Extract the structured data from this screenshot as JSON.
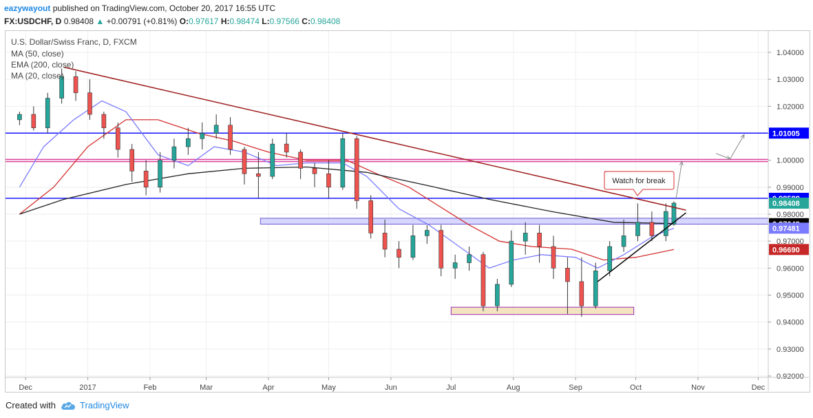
{
  "header": {
    "line1": {
      "author": "eazywayout",
      "published": "published on TradingView.com, October 20, 2017 16:55 UTC"
    },
    "line2": {
      "symbol": "FX:USDCHF, D",
      "price": "0.98408",
      "arrow": "▲",
      "change": "+0.00791 (+0.81%)",
      "o_label": "O:",
      "o_value": "0.97617",
      "h_label": "H:",
      "h_value": "0.98474",
      "l_label": "L:",
      "l_value": "0.97566",
      "c_label": "C:",
      "c_value": "0.98408"
    }
  },
  "legend": {
    "instrument": "U.S. Dollar/Swiss Franc, D, FXCM",
    "studies": [
      "MA (50, close)",
      "EMA (200, close)",
      "MA (20, close)"
    ]
  },
  "annotation": {
    "text": "Watch for break"
  },
  "footer": {
    "created_with": "Created with",
    "brand": "TradingView"
  },
  "colors": {
    "up": "#26a69a",
    "down": "#ef5350",
    "ma50": "#d32f2f",
    "ema200": "#222222",
    "ma20": "#7b7bff",
    "blue_line": "#0000ff",
    "pink_line": "#e040a0",
    "trend_line": "#9e1b1b",
    "support_zone": "#e6cfa0",
    "resistance_zone": "#c8c8ff"
  },
  "chart_data": {
    "type": "candlestick",
    "ylim": [
      0.915,
      1.045
    ],
    "yticks": [
      "1.04000",
      "1.03000",
      "1.02000",
      "1.01000",
      "1.00000",
      "0.99000",
      "0.98000",
      "0.97000",
      "0.96000",
      "0.95000",
      "0.94000",
      "0.93000",
      "0.92000"
    ],
    "ytick_values": [
      1.04,
      1.03,
      1.02,
      1.01,
      1.0,
      0.99,
      0.98,
      0.97,
      0.96,
      0.95,
      0.94,
      0.93,
      0.92
    ],
    "xticks": [
      {
        "label": "Dec",
        "date": "2016-12-01"
      },
      {
        "label": "2017",
        "date": "2017-01-01"
      },
      {
        "label": "Feb",
        "date": "2017-02-01"
      },
      {
        "label": "Mar",
        "date": "2017-03-01"
      },
      {
        "label": "Apr",
        "date": "2017-04-01"
      },
      {
        "label": "May",
        "date": "2017-05-01"
      },
      {
        "label": "Jun",
        "date": "2017-06-01"
      },
      {
        "label": "Jul",
        "date": "2017-07-01"
      },
      {
        "label": "Aug",
        "date": "2017-08-01"
      },
      {
        "label": "Sep",
        "date": "2017-09-01"
      },
      {
        "label": "Oct",
        "date": "2017-10-01"
      },
      {
        "label": "Nov",
        "date": "2017-11-01"
      },
      {
        "label": "Dec",
        "date": "2017-12-01"
      }
    ],
    "price_labels": [
      {
        "value": 1.01005,
        "text": "1.01005",
        "bg": "#0000ff",
        "fg": "#ffffff"
      },
      {
        "value": 0.98588,
        "text": "0.98588",
        "bg": "#0000ff",
        "fg": "#ffffff"
      },
      {
        "value": 0.98408,
        "text": "0.98408",
        "bg": "#26a69a",
        "fg": "#ffffff"
      },
      {
        "value": 0.97648,
        "text": "0.97648",
        "bg": "#000000",
        "fg": "#ffffff"
      },
      {
        "value": 0.97481,
        "text": "0.97481",
        "bg": "#7b7bff",
        "fg": "#ffffff"
      },
      {
        "value": 0.9669,
        "text": "0.96690",
        "bg": "#c62828",
        "fg": "#ffffff"
      }
    ],
    "horizontal_lines": [
      {
        "name": "resistance-1.01005",
        "value": 1.01005,
        "color": "#0000ff"
      },
      {
        "name": "level-1.0000",
        "value": 1.0003,
        "color": "#e040a0"
      },
      {
        "name": "level-1.0000-b",
        "value": 0.9995,
        "color": "#e040a0"
      },
      {
        "name": "resistance-0.98588",
        "value": 0.98588,
        "color": "#0000ff"
      }
    ],
    "zones": [
      {
        "name": "resistance-zone",
        "from": "2017-03-28",
        "to": "2017-12-31",
        "y1": 0.9785,
        "y2": 0.9763,
        "fill": "#c8c8ff",
        "stroke": "#6a5acd"
      },
      {
        "name": "support-zone",
        "from": "2017-07-01",
        "to": "2017-09-30",
        "y1": 0.9455,
        "y2": 0.9428,
        "fill": "#f0d9ac",
        "stroke": "#9c27b0"
      }
    ],
    "trendlines": [
      {
        "name": "falling-trendline",
        "x1": "2016-12-20",
        "y1": 1.0345,
        "x2": "2017-10-26",
        "y2": 0.9815,
        "color": "#9e1b1b"
      },
      {
        "name": "rising-trendline",
        "x1": "2017-09-12",
        "y1": 0.955,
        "x2": "2017-10-26",
        "y2": 0.9805,
        "color": "#000000"
      }
    ],
    "arrows": [
      {
        "name": "arrow-1",
        "x1": "2017-10-21",
        "y1": 0.9855,
        "x2": "2017-10-24",
        "y2": 0.9995
      },
      {
        "name": "arrow-2",
        "x1": "2017-11-10",
        "y1": 1.0025,
        "x2": "2017-11-17",
        "y2": 1.0005
      },
      {
        "name": "arrow-3",
        "x1": "2017-11-17",
        "y1": 1.0005,
        "x2": "2017-11-24",
        "y2": 1.0095
      }
    ],
    "series": [
      {
        "name": "MA (50, close)",
        "color": "#d32f2f",
        "points": [
          [
            "2016-11-28",
            0.98
          ],
          [
            "2016-12-15",
            0.99
          ],
          [
            "2017-01-01",
            1.005
          ],
          [
            "2017-01-20",
            1.015
          ],
          [
            "2017-02-05",
            1.015
          ],
          [
            "2017-02-25",
            1.01
          ],
          [
            "2017-03-15",
            1.007
          ],
          [
            "2017-04-01",
            1.003
          ],
          [
            "2017-04-20",
            1.0
          ],
          [
            "2017-05-10",
            1.0
          ],
          [
            "2017-05-25",
            0.995
          ],
          [
            "2017-06-10",
            0.99
          ],
          [
            "2017-06-25",
            0.983
          ],
          [
            "2017-07-10",
            0.976
          ],
          [
            "2017-07-25",
            0.97
          ],
          [
            "2017-08-10",
            0.968
          ],
          [
            "2017-08-30",
            0.967
          ],
          [
            "2017-09-15",
            0.963
          ],
          [
            "2017-10-01",
            0.964
          ],
          [
            "2017-10-20",
            0.9669
          ]
        ]
      },
      {
        "name": "EMA (200, close)",
        "color": "#222222",
        "points": [
          [
            "2016-11-28",
            0.98
          ],
          [
            "2016-12-20",
            0.9855
          ],
          [
            "2017-01-20",
            0.991
          ],
          [
            "2017-02-20",
            0.995
          ],
          [
            "2017-03-20",
            0.997
          ],
          [
            "2017-04-20",
            0.9975
          ],
          [
            "2017-05-20",
            0.9955
          ],
          [
            "2017-06-20",
            0.9905
          ],
          [
            "2017-07-20",
            0.9855
          ],
          [
            "2017-08-20",
            0.981
          ],
          [
            "2017-09-20",
            0.977
          ],
          [
            "2017-10-20",
            0.9765
          ]
        ]
      },
      {
        "name": "MA (20, close)",
        "color": "#7b7bff",
        "points": [
          [
            "2016-11-28",
            0.99
          ],
          [
            "2016-12-10",
            1.005
          ],
          [
            "2016-12-25",
            1.015
          ],
          [
            "2017-01-08",
            1.022
          ],
          [
            "2017-01-20",
            1.018
          ],
          [
            "2017-02-05",
            1.002
          ],
          [
            "2017-02-20",
            0.998
          ],
          [
            "2017-03-05",
            1.005
          ],
          [
            "2017-03-20",
            1.003
          ],
          [
            "2017-04-05",
            0.998
          ],
          [
            "2017-04-20",
            0.999
          ],
          [
            "2017-05-08",
            0.999
          ],
          [
            "2017-05-20",
            0.994
          ],
          [
            "2017-06-05",
            0.982
          ],
          [
            "2017-06-20",
            0.976
          ],
          [
            "2017-07-05",
            0.968
          ],
          [
            "2017-07-20",
            0.96
          ],
          [
            "2017-08-01",
            0.963
          ],
          [
            "2017-08-15",
            0.965
          ],
          [
            "2017-09-01",
            0.964
          ],
          [
            "2017-09-12",
            0.96
          ],
          [
            "2017-09-25",
            0.965
          ],
          [
            "2017-10-10",
            0.972
          ],
          [
            "2017-10-20",
            0.9748
          ]
        ]
      }
    ],
    "candles": [
      [
        "2016-11-28",
        1.015,
        1.018,
        1.013,
        1.017
      ],
      [
        "2016-12-05",
        1.017,
        1.02,
        1.011,
        1.012
      ],
      [
        "2016-12-12",
        1.012,
        1.025,
        1.01,
        1.023
      ],
      [
        "2016-12-19",
        1.023,
        1.034,
        1.021,
        1.031
      ],
      [
        "2016-12-26",
        1.031,
        1.033,
        1.022,
        1.025
      ],
      [
        "2017-01-02",
        1.025,
        1.03,
        1.015,
        1.017
      ],
      [
        "2017-01-09",
        1.017,
        1.018,
        1.008,
        1.012
      ],
      [
        "2017-01-16",
        1.012,
        1.014,
        1.001,
        1.004
      ],
      [
        "2017-01-23",
        1.004,
        1.006,
        0.992,
        0.996
      ],
      [
        "2017-01-30",
        0.996,
        1.0,
        0.987,
        0.99
      ],
      [
        "2017-02-06",
        0.99,
        1.003,
        0.988,
        1.0
      ],
      [
        "2017-02-13",
        1.0,
        1.008,
        0.997,
        1.005
      ],
      [
        "2017-02-20",
        1.005,
        1.012,
        1.002,
        1.008
      ],
      [
        "2017-02-27",
        1.008,
        1.014,
        1.004,
        1.01
      ],
      [
        "2017-03-06",
        1.01,
        1.017,
        1.008,
        1.013
      ],
      [
        "2017-03-13",
        1.013,
        1.016,
        1.002,
        1.004
      ],
      [
        "2017-03-20",
        1.004,
        1.005,
        0.991,
        0.995
      ],
      [
        "2017-03-27",
        0.995,
        1.003,
        0.986,
        0.994
      ],
      [
        "2017-04-03",
        0.994,
        1.008,
        0.993,
        1.006
      ],
      [
        "2017-04-10",
        1.006,
        1.01,
        1.001,
        1.003
      ],
      [
        "2017-04-17",
        1.003,
        1.004,
        0.993,
        0.997
      ],
      [
        "2017-04-24",
        0.997,
        0.999,
        0.99,
        0.995
      ],
      [
        "2017-05-01",
        0.995,
        1.0,
        0.986,
        0.99
      ],
      [
        "2017-05-08",
        0.99,
        1.01,
        0.989,
        1.008
      ],
      [
        "2017-05-15",
        1.008,
        1.009,
        0.982,
        0.985
      ],
      [
        "2017-05-22",
        0.985,
        0.987,
        0.971,
        0.973
      ],
      [
        "2017-05-29",
        0.973,
        0.978,
        0.964,
        0.967
      ],
      [
        "2017-06-05",
        0.967,
        0.97,
        0.96,
        0.964
      ],
      [
        "2017-06-12",
        0.964,
        0.976,
        0.963,
        0.972
      ],
      [
        "2017-06-19",
        0.972,
        0.976,
        0.969,
        0.974
      ],
      [
        "2017-06-26",
        0.974,
        0.976,
        0.957,
        0.96
      ],
      [
        "2017-07-03",
        0.96,
        0.965,
        0.956,
        0.962
      ],
      [
        "2017-07-10",
        0.962,
        0.968,
        0.959,
        0.965
      ],
      [
        "2017-07-17",
        0.965,
        0.966,
        0.944,
        0.946
      ],
      [
        "2017-07-24",
        0.946,
        0.956,
        0.944,
        0.954
      ],
      [
        "2017-07-31",
        0.954,
        0.974,
        0.953,
        0.97
      ],
      [
        "2017-08-07",
        0.97,
        0.977,
        0.965,
        0.973
      ],
      [
        "2017-08-14",
        0.973,
        0.976,
        0.962,
        0.968
      ],
      [
        "2017-08-21",
        0.968,
        0.972,
        0.956,
        0.96
      ],
      [
        "2017-08-28",
        0.96,
        0.964,
        0.943,
        0.955
      ],
      [
        "2017-09-04",
        0.955,
        0.964,
        0.942,
        0.946
      ],
      [
        "2017-09-11",
        0.946,
        0.962,
        0.945,
        0.959
      ],
      [
        "2017-09-18",
        0.959,
        0.97,
        0.957,
        0.968
      ],
      [
        "2017-09-25",
        0.968,
        0.978,
        0.966,
        0.972
      ],
      [
        "2017-10-02",
        0.972,
        0.984,
        0.97,
        0.977
      ],
      [
        "2017-10-09",
        0.977,
        0.981,
        0.97,
        0.972
      ],
      [
        "2017-10-16",
        0.972,
        0.984,
        0.97,
        0.981
      ],
      [
        "2017-10-20",
        0.9762,
        0.9847,
        0.9757,
        0.9841
      ]
    ]
  }
}
